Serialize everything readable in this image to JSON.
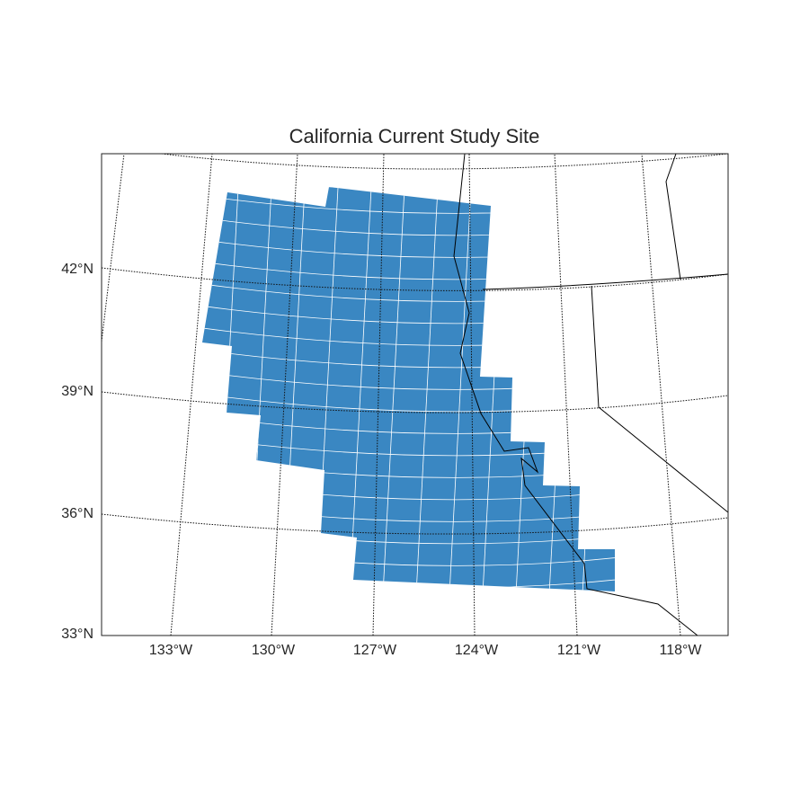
{
  "title": "California Current Study Site",
  "latitude_labels": [
    "42°N",
    "39°N",
    "36°N",
    "33°N"
  ],
  "longitude_labels": [
    "133°W",
    "130°W",
    "127°W",
    "124°W",
    "121°W",
    "118°W"
  ]
}
